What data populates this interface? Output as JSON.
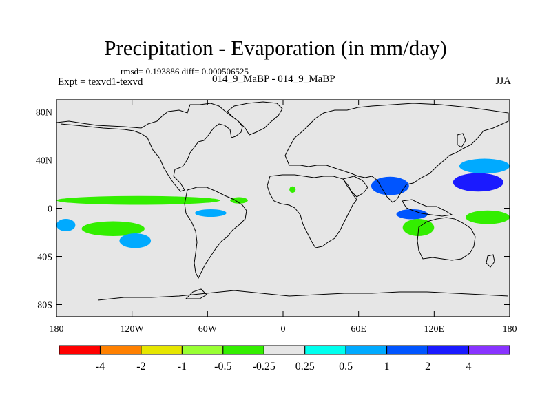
{
  "title": "Precipitation - Evaporation (in mm/day)",
  "stats": "rmsd= 0.193886 diff= 0.000506525",
  "experiment": "Expt = texvd1-texvd",
  "runs": "014_9_MaBP - 014_9_MaBP",
  "season": "JJA",
  "axes": {
    "x_ticks": [
      {
        "value": -180,
        "label": "180"
      },
      {
        "value": -120,
        "label": "120W"
      },
      {
        "value": -60,
        "label": "60W"
      },
      {
        "value": 0,
        "label": "0"
      },
      {
        "value": 60,
        "label": "60E"
      },
      {
        "value": 120,
        "label": "120E"
      },
      {
        "value": 180,
        "label": "180"
      }
    ],
    "y_ticks": [
      {
        "value": 80,
        "label": "80N"
      },
      {
        "value": 40,
        "label": "40N"
      },
      {
        "value": 0,
        "label": "0"
      },
      {
        "value": -40,
        "label": "40S"
      },
      {
        "value": -80,
        "label": "80S"
      }
    ],
    "lon_range": [
      -180,
      180
    ],
    "lat_range": [
      -90,
      90
    ]
  },
  "legend": {
    "colors": [
      "#ff0000",
      "#ff8000",
      "#e6e600",
      "#99ff33",
      "#33ee00",
      "#e6e6e6",
      "#00ffee",
      "#00aaff",
      "#0055ff",
      "#1a1aff",
      "#8833ff"
    ],
    "labels": [
      "-4",
      "-2",
      "-1",
      "-0.5",
      "-0.25",
      "0.25",
      "0.5",
      "1",
      "2",
      "4"
    ]
  },
  "background_color": "#e6e6e6",
  "chart_data": {
    "type": "heatmap",
    "title": "Precipitation - Evaporation (in mm/day)",
    "projection": "cylindrical equidistant",
    "xlim": [
      -180,
      180
    ],
    "ylim": [
      -90,
      90
    ],
    "contour_levels": [
      -4,
      -2,
      -1,
      -0.5,
      -0.25,
      0.25,
      0.5,
      1,
      2,
      4
    ],
    "regions": [
      {
        "name": "central-pacific-itcz-band",
        "lon": [
          -180,
          -50
        ],
        "lat": [
          4,
          9
        ],
        "level": -0.5
      },
      {
        "name": "atlantic-itcz-patch",
        "lon": [
          -42,
          -28
        ],
        "lat": [
          5,
          8
        ],
        "level": -0.5
      },
      {
        "name": "west-africa-patch",
        "lon": [
          5,
          10
        ],
        "lat": [
          14,
          17
        ],
        "level": -0.5
      },
      {
        "name": "southeast-pacific-band-1",
        "lon": [
          -160,
          -110
        ],
        "lat": [
          -12,
          -22
        ],
        "level": -0.5
      },
      {
        "name": "southeast-pacific-band-2",
        "lon": [
          -130,
          -105
        ],
        "lat": [
          -22,
          -32
        ],
        "level": 0.5
      },
      {
        "name": "eastern-pacific-cyan-1",
        "lon": [
          -180,
          -165
        ],
        "lat": [
          -10,
          -18
        ],
        "level": 0.5
      },
      {
        "name": "eastern-pacific-cyan-2",
        "lon": [
          -70,
          -45
        ],
        "lat": [
          -2,
          -6
        ],
        "level": 0.5
      },
      {
        "name": "indian-monsoon",
        "lon": [
          70,
          100
        ],
        "lat": [
          12,
          25
        ],
        "level": 1
      },
      {
        "name": "west-pacific-warm-pool",
        "lon": [
          135,
          175
        ],
        "lat": [
          15,
          28
        ],
        "level": 2
      },
      {
        "name": "north-pacific-band",
        "lon": [
          140,
          180
        ],
        "lat": [
          30,
          40
        ],
        "level": 0.5
      },
      {
        "name": "maritime-continent",
        "lon": [
          90,
          115
        ],
        "lat": [
          -2,
          -8
        ],
        "level": 1
      },
      {
        "name": "south-indian-ocean",
        "lon": [
          95,
          120
        ],
        "lat": [
          -10,
          -22
        ],
        "level": -0.5
      },
      {
        "name": "south-pacific-convergence",
        "lon": [
          145,
          180
        ],
        "lat": [
          -3,
          -12
        ],
        "level": -0.5
      }
    ]
  }
}
